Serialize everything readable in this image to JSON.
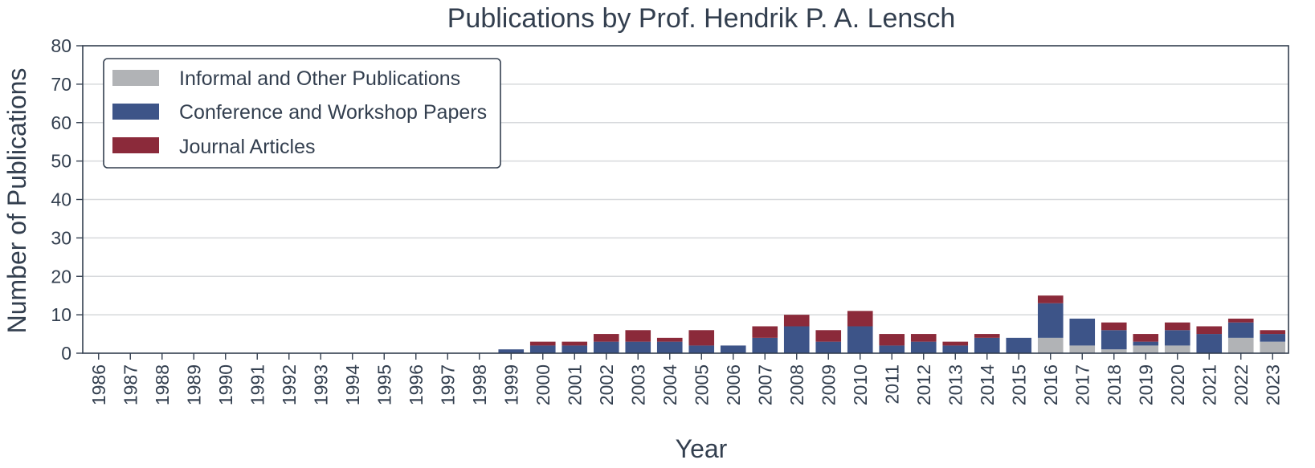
{
  "chart_data": {
    "type": "bar",
    "stacked": true,
    "title": "Publications by Prof. Hendrik P. A. Lensch",
    "xlabel": "Year",
    "ylabel": "Number of Publications",
    "ylim": [
      0,
      80
    ],
    "yticks": [
      "0",
      "10",
      "20",
      "30",
      "40",
      "50",
      "60",
      "70",
      "80"
    ],
    "grid": "horizontal",
    "legend_position": "top-left",
    "categories": [
      "1986",
      "1987",
      "1988",
      "1989",
      "1990",
      "1991",
      "1992",
      "1993",
      "1994",
      "1995",
      "1996",
      "1997",
      "1998",
      "1999",
      "2000",
      "2001",
      "2002",
      "2003",
      "2004",
      "2005",
      "2006",
      "2007",
      "2008",
      "2009",
      "2010",
      "2011",
      "2012",
      "2013",
      "2014",
      "2015",
      "2016",
      "2017",
      "2018",
      "2019",
      "2020",
      "2021",
      "2022",
      "2023"
    ],
    "series": [
      {
        "name": "Informal and Other Publications",
        "color": "#b1b3b6",
        "values": [
          0,
          0,
          0,
          0,
          0,
          0,
          0,
          0,
          0,
          0,
          0,
          0,
          0,
          0,
          0,
          0,
          0,
          0,
          0,
          0,
          0,
          0,
          0,
          0,
          0,
          0,
          0,
          0,
          0,
          0,
          4,
          2,
          1,
          2,
          2,
          0,
          4,
          3
        ]
      },
      {
        "name": "Conference and Workshop Papers",
        "color": "#3d5488",
        "values": [
          0,
          0,
          0,
          0,
          0,
          0,
          0,
          0,
          0,
          0,
          0,
          0,
          0,
          1,
          2,
          2,
          3,
          3,
          3,
          2,
          2,
          4,
          7,
          3,
          7,
          2,
          3,
          2,
          4,
          4,
          9,
          7,
          5,
          1,
          4,
          5,
          4,
          2
        ]
      },
      {
        "name": "Journal Articles",
        "color": "#8b2a3a",
        "values": [
          0,
          0,
          0,
          0,
          0,
          0,
          0,
          0,
          0,
          0,
          0,
          0,
          0,
          0,
          1,
          1,
          2,
          3,
          1,
          4,
          0,
          3,
          3,
          3,
          4,
          3,
          2,
          1,
          1,
          0,
          2,
          0,
          2,
          2,
          2,
          2,
          1,
          1
        ]
      }
    ]
  }
}
